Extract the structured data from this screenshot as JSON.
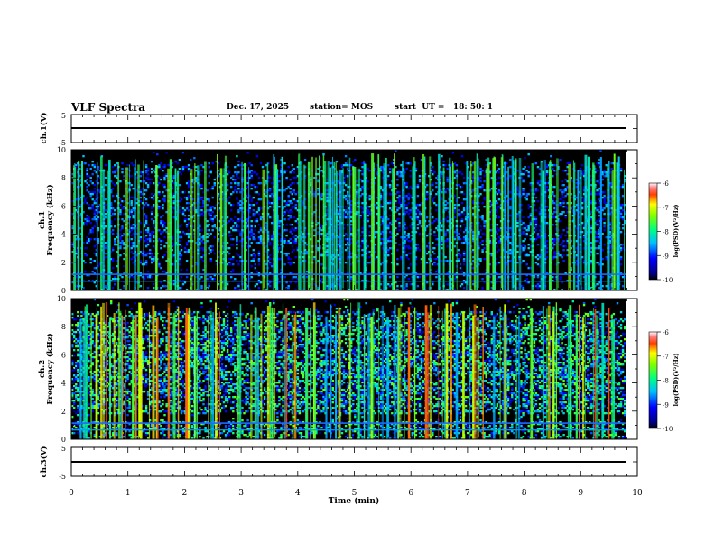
{
  "header": {
    "title": "VLF Spectra",
    "date": "Dec. 17, 2025",
    "station": "station= MOS",
    "start": "start  UT =   18: 50: 1"
  },
  "chart_data": [
    {
      "type": "line",
      "panel": "ch1-waveform",
      "ylabel": "ch.1(V)",
      "ylim": [
        -5,
        5
      ],
      "yticks": [
        "5",
        "-5"
      ],
      "xlim": [
        0,
        10
      ],
      "series": [
        {
          "x": [
            0,
            9.8
          ],
          "y": [
            0,
            0
          ]
        }
      ]
    },
    {
      "type": "heatmap",
      "panel": "ch1-spectrogram",
      "ylabel": [
        "ch.1",
        "Frequency  (kHz)"
      ],
      "ylim": [
        0,
        10
      ],
      "yticks": [
        "0",
        "2",
        "4",
        "6",
        "8",
        "10"
      ],
      "xlim": [
        0,
        9.8
      ],
      "colorbar": {
        "label": "log(PSD)(V²/Hz)",
        "range": [
          -10,
          -6
        ],
        "ticks": [
          "-6",
          "-7",
          "-8",
          "-9",
          "-10"
        ]
      }
    },
    {
      "type": "heatmap",
      "panel": "ch2-spectrogram",
      "ylabel": [
        "ch.2",
        "Frequency  (kHz)"
      ],
      "ylim": [
        0,
        10
      ],
      "yticks": [
        "0",
        "2",
        "4",
        "6",
        "8",
        "10"
      ],
      "xlim": [
        0,
        9.8
      ],
      "colorbar": {
        "label": "log(PSD)(V²/Hz)",
        "range": [
          -10,
          -6
        ],
        "ticks": [
          "-6",
          "-7",
          "-8",
          "-9",
          "-10"
        ]
      }
    },
    {
      "type": "line",
      "panel": "ch3-waveform",
      "ylabel": "ch.3(V)",
      "ylim": [
        -5,
        5
      ],
      "yticks": [
        "5",
        "-5"
      ],
      "xlim": [
        0,
        10
      ],
      "xlabel": "Time  (min)",
      "xticks": [
        "0",
        "1",
        "2",
        "3",
        "4",
        "5",
        "6",
        "7",
        "8",
        "9",
        "10"
      ],
      "series": [
        {
          "x": [
            0,
            9.8
          ],
          "y": [
            0,
            0
          ]
        }
      ]
    }
  ]
}
